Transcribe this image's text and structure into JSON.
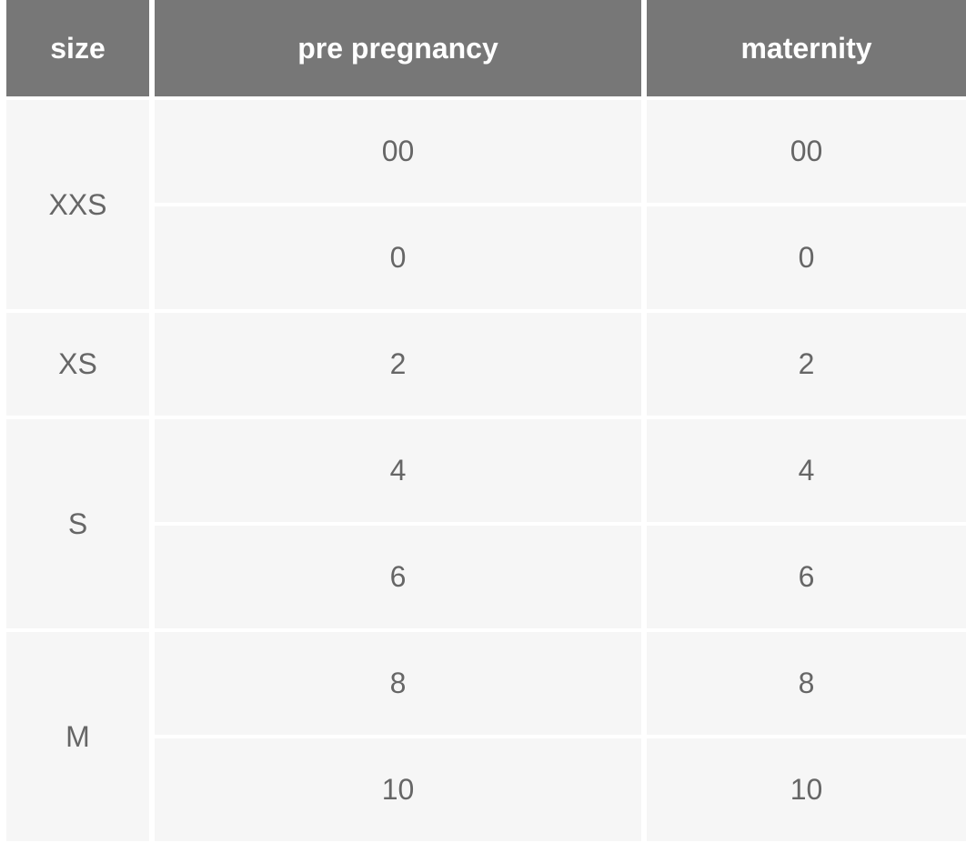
{
  "table": {
    "columns": [
      "size",
      "pre pregnancy",
      "maternity"
    ],
    "groups": [
      {
        "size": "XXS",
        "rows": [
          [
            "00",
            "00"
          ],
          [
            "0",
            "0"
          ]
        ]
      },
      {
        "size": "XS",
        "rows": [
          [
            "2",
            "2"
          ]
        ]
      },
      {
        "size": "S",
        "rows": [
          [
            "4",
            "4"
          ],
          [
            "6",
            "6"
          ]
        ]
      },
      {
        "size": "M",
        "rows": [
          [
            "8",
            "8"
          ],
          [
            "10",
            "10"
          ]
        ]
      }
    ]
  }
}
